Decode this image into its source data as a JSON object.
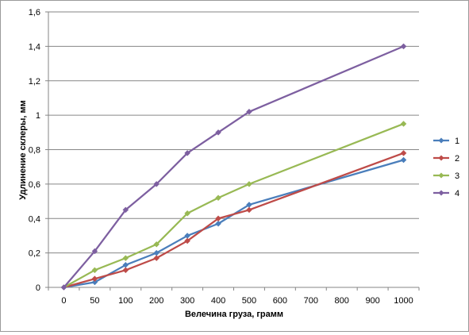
{
  "chart_data": {
    "type": "line",
    "title": "",
    "xlabel": "Велечина груза, грамм",
    "ylabel": "Удлинение склеры, мм",
    "categories": [
      "0",
      "50",
      "100",
      "200",
      "300",
      "400",
      "500",
      "600",
      "700",
      "800",
      "900",
      "1000"
    ],
    "ylim": [
      0,
      1.6
    ],
    "yticks": [
      "0",
      "0,2",
      "0,4",
      "0,6",
      "0,8",
      "1",
      "1,2",
      "1,4",
      "1,6"
    ],
    "grid": "horizontal",
    "legend_position": "right",
    "series": [
      {
        "name": "1",
        "color": "#4a7ebb",
        "points": [
          [
            "0",
            0
          ],
          [
            "50",
            0.03
          ],
          [
            "100",
            0.13
          ],
          [
            "200",
            0.2
          ],
          [
            "300",
            0.3
          ],
          [
            "400",
            0.37
          ],
          [
            "500",
            0.48
          ],
          [
            "1000",
            0.74
          ]
        ]
      },
      {
        "name": "2",
        "color": "#be4b48",
        "points": [
          [
            "0",
            0
          ],
          [
            "50",
            0.05
          ],
          [
            "100",
            0.1
          ],
          [
            "200",
            0.17
          ],
          [
            "300",
            0.27
          ],
          [
            "400",
            0.4
          ],
          [
            "500",
            0.45
          ],
          [
            "1000",
            0.78
          ]
        ]
      },
      {
        "name": "3",
        "color": "#98b954",
        "points": [
          [
            "0",
            0
          ],
          [
            "50",
            0.1
          ],
          [
            "100",
            0.17
          ],
          [
            "200",
            0.25
          ],
          [
            "300",
            0.43
          ],
          [
            "400",
            0.52
          ],
          [
            "500",
            0.6
          ],
          [
            "1000",
            0.95
          ]
        ]
      },
      {
        "name": "4",
        "color": "#7d5fa0",
        "points": [
          [
            "0",
            0
          ],
          [
            "50",
            0.21
          ],
          [
            "100",
            0.45
          ],
          [
            "200",
            0.6
          ],
          [
            "300",
            0.78
          ],
          [
            "400",
            0.9
          ],
          [
            "500",
            1.02
          ],
          [
            "1000",
            1.4
          ]
        ]
      }
    ]
  }
}
